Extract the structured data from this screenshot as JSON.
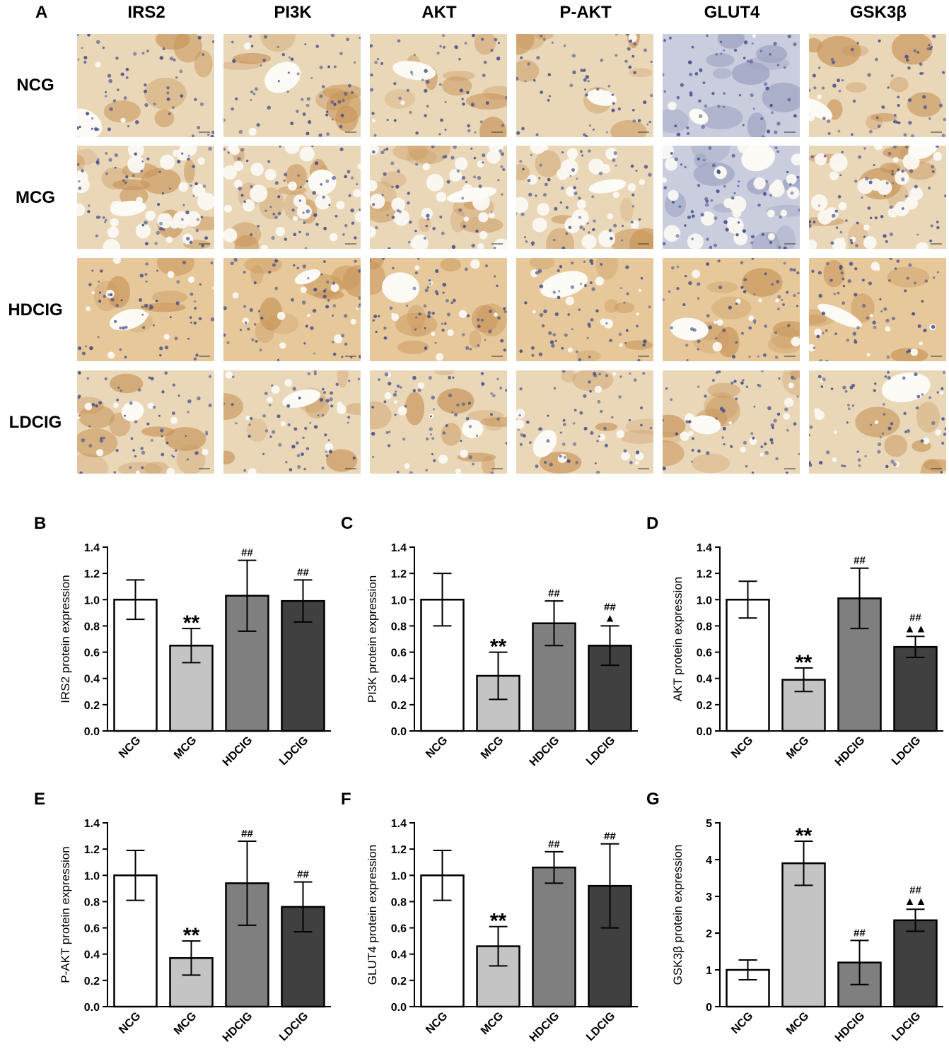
{
  "panel_a": {
    "letter": "A",
    "columns": [
      "IRS2",
      "PI3K",
      "AKT",
      "P-AKT",
      "GLUT4",
      "GSK3β"
    ],
    "rows": [
      "NCG",
      "MCG",
      "HDCIG",
      "LDCIG"
    ]
  },
  "colors": {
    "NCG": "#ffffff",
    "MCG": "#c4c4c4",
    "HDCIG": "#7f7f7f",
    "LDCIG": "#404040",
    "tissue_brown": "#c8955a",
    "tissue_cream": "#ead7b8",
    "nucleus_blue": "#3f4a8a"
  },
  "chart_data": [
    {
      "letter": "B",
      "type": "bar",
      "categories": [
        "NCG",
        "MCG",
        "HDCIG",
        "LDCIG"
      ],
      "values": [
        1.0,
        0.65,
        1.03,
        0.99
      ],
      "errors": [
        0.15,
        0.13,
        0.27,
        0.16
      ],
      "annotations": [
        [
          "",
          ""
        ],
        [
          "**",
          ""
        ],
        [
          "##",
          ""
        ],
        [
          "##",
          ""
        ]
      ],
      "ylabel": "IRS2 protein expression",
      "ylim": [
        0,
        1.4
      ],
      "yticks": [
        "0.0",
        "0.2",
        "0.4",
        "0.6",
        "0.8",
        "1.0",
        "1.2",
        "1.4"
      ]
    },
    {
      "letter": "C",
      "type": "bar",
      "categories": [
        "NCG",
        "MCG",
        "HDCIG",
        "LDCIG"
      ],
      "values": [
        1.0,
        0.42,
        0.82,
        0.65
      ],
      "errors": [
        0.2,
        0.18,
        0.17,
        0.15
      ],
      "annotations": [
        [
          "",
          ""
        ],
        [
          "**",
          ""
        ],
        [
          "##",
          ""
        ],
        [
          "##",
          "▲"
        ]
      ],
      "ylabel": "PI3K protein expression",
      "ylim": [
        0,
        1.4
      ],
      "yticks": [
        "0.0",
        "0.2",
        "0.4",
        "0.6",
        "0.8",
        "1.0",
        "1.2",
        "1.4"
      ]
    },
    {
      "letter": "D",
      "type": "bar",
      "categories": [
        "NCG",
        "MCG",
        "HDCIG",
        "LDCIG"
      ],
      "values": [
        1.0,
        0.39,
        1.01,
        0.64
      ],
      "errors": [
        0.14,
        0.09,
        0.23,
        0.08
      ],
      "annotations": [
        [
          "",
          ""
        ],
        [
          "**",
          ""
        ],
        [
          "##",
          ""
        ],
        [
          "##",
          "▲▲"
        ]
      ],
      "ylabel": "AKT protein expression",
      "ylim": [
        0,
        1.4
      ],
      "yticks": [
        "0.0",
        "0.2",
        "0.4",
        "0.6",
        "0.8",
        "1.0",
        "1.2",
        "1.4"
      ]
    },
    {
      "letter": "E",
      "type": "bar",
      "categories": [
        "NCG",
        "MCG",
        "HDCIG",
        "LDCIG"
      ],
      "values": [
        1.0,
        0.37,
        0.94,
        0.76
      ],
      "errors": [
        0.19,
        0.13,
        0.32,
        0.19
      ],
      "annotations": [
        [
          "",
          ""
        ],
        [
          "**",
          ""
        ],
        [
          "##",
          ""
        ],
        [
          "##",
          ""
        ]
      ],
      "ylabel": "P-AKT protein expression",
      "ylim": [
        0,
        1.4
      ],
      "yticks": [
        "0.0",
        "0.2",
        "0.4",
        "0.6",
        "0.8",
        "1.0",
        "1.2",
        "1.4"
      ]
    },
    {
      "letter": "F",
      "type": "bar",
      "categories": [
        "NCG",
        "MCG",
        "HDCIG",
        "LDCIG"
      ],
      "values": [
        1.0,
        0.46,
        1.06,
        0.92
      ],
      "errors": [
        0.19,
        0.15,
        0.12,
        0.32
      ],
      "annotations": [
        [
          "",
          ""
        ],
        [
          "**",
          ""
        ],
        [
          "##",
          ""
        ],
        [
          "##",
          ""
        ]
      ],
      "ylabel": "GLUT4 protein expression",
      "ylim": [
        0,
        1.4
      ],
      "yticks": [
        "0.0",
        "0.2",
        "0.4",
        "0.6",
        "0.8",
        "1.0",
        "1.2",
        "1.4"
      ]
    },
    {
      "letter": "G",
      "type": "bar",
      "categories": [
        "NCG",
        "MCG",
        "HDCIG",
        "LDCIG"
      ],
      "values": [
        1.0,
        3.9,
        1.2,
        2.35
      ],
      "errors": [
        0.27,
        0.6,
        0.6,
        0.3
      ],
      "annotations": [
        [
          "",
          ""
        ],
        [
          "**",
          ""
        ],
        [
          "##",
          ""
        ],
        [
          "##",
          "▲▲"
        ]
      ],
      "ylabel": "GSK3β protein expression",
      "ylim": [
        0,
        5
      ],
      "yticks": [
        "0",
        "1",
        "2",
        "3",
        "4",
        "5"
      ]
    }
  ]
}
